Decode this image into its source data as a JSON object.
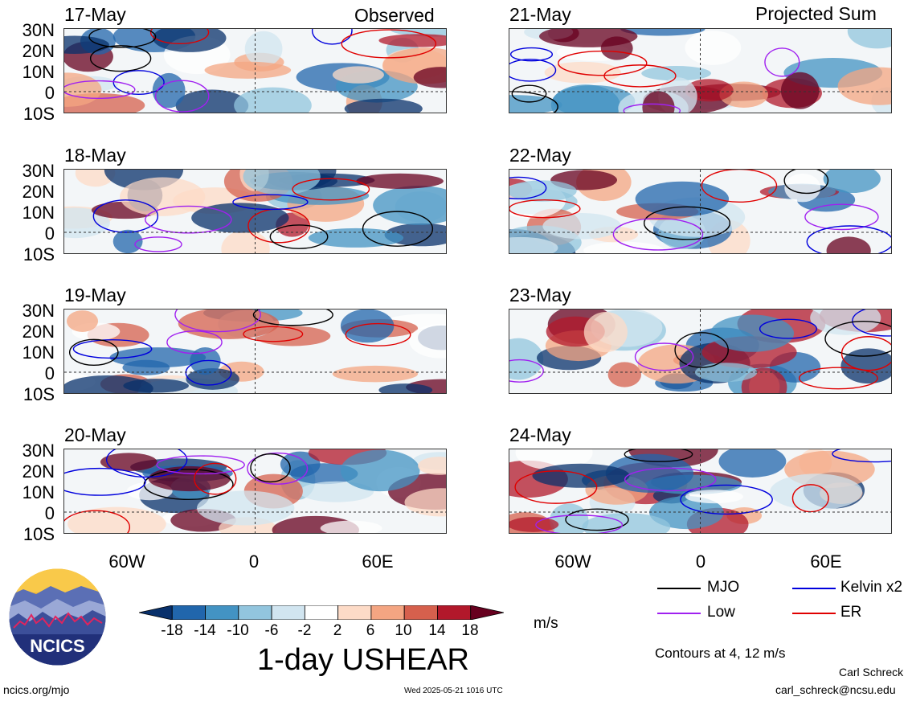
{
  "header": {
    "observed_label": "Observed",
    "projected_label": "Projected Sum"
  },
  "panels": {
    "observed": [
      {
        "date": "17-May"
      },
      {
        "date": "18-May"
      },
      {
        "date": "19-May"
      },
      {
        "date": "20-May"
      }
    ],
    "projected": [
      {
        "date": "21-May"
      },
      {
        "date": "22-May"
      },
      {
        "date": "23-May"
      },
      {
        "date": "24-May"
      }
    ]
  },
  "axes": {
    "lat_labels": [
      "30N",
      "20N",
      "10N",
      "0",
      "10S"
    ],
    "lon_labels": [
      "60W",
      "0",
      "60E"
    ]
  },
  "colorbar": {
    "tick_labels": [
      "-18",
      "-14",
      "-10",
      "-6",
      "-2",
      "2",
      "6",
      "10",
      "14",
      "18"
    ],
    "colors": [
      "#08306b",
      "#2166ac",
      "#4393c3",
      "#92c5de",
      "#d1e5f0",
      "#ffffff",
      "#fddbc7",
      "#f4a582",
      "#d6604d",
      "#b2182b",
      "#67001f"
    ],
    "units": "m/s"
  },
  "legend": {
    "items": [
      {
        "label": "MJO",
        "color": "#000000"
      },
      {
        "label": "Kelvin x2",
        "color": "#0000dd"
      },
      {
        "label": "Low",
        "color": "#a020f0"
      },
      {
        "label": "ER",
        "color": "#e00000"
      }
    ],
    "contour_note": "Contours at 4, 12 m/s"
  },
  "footer": {
    "title": "1-day USHEAR",
    "site": "ncics.org/mjo",
    "timestamp": "Wed 2025-05-21 1016 UTC",
    "author": "Carl Schreck",
    "email": "carl_schreck@ncsu.edu",
    "logo_text": "NCICS"
  }
}
